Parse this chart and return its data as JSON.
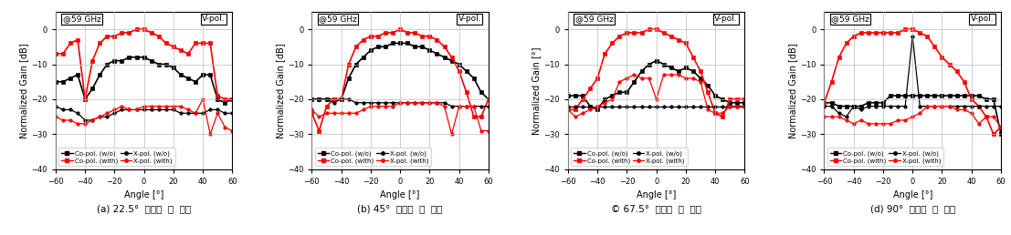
{
  "subplots": [
    {
      "ylabel": "Normalized Gain [dB]",
      "xlabel": "Angle [°]",
      "annotation_left": "@59 GHz",
      "annotation_right": "V-pol.",
      "ylim": [
        -40,
        5
      ],
      "xlim": [
        -60,
        60
      ],
      "yticks": [
        0,
        -10,
        -20,
        -30,
        -40
      ],
      "xticks": [
        -60,
        -40,
        -20,
        0,
        20,
        40,
        60
      ],
      "caption": "(a) 22.5°  안테나  비  정렬",
      "series": [
        {
          "label": "Co-pol. (w/o)",
          "color": "black",
          "marker": "s",
          "linewidth": 1.2,
          "markersize": 3.5,
          "linestyle": "-",
          "x": [
            -60,
            -55,
            -50,
            -45,
            -40,
            -35,
            -30,
            -25,
            -20,
            -15,
            -10,
            -5,
            0,
            5,
            10,
            15,
            20,
            25,
            30,
            35,
            40,
            45,
            50,
            55,
            60
          ],
          "y": [
            -15,
            -15,
            -14,
            -13,
            -20,
            -17,
            -13,
            -10,
            -9,
            -9,
            -8,
            -8,
            -8,
            -9,
            -10,
            -10,
            -11,
            -13,
            -14,
            -15,
            -13,
            -13,
            -20,
            -21,
            -20
          ]
        },
        {
          "label": "Co-pol. (with)",
          "color": "red",
          "marker": "s",
          "linewidth": 1.2,
          "markersize": 3.5,
          "linestyle": "-",
          "x": [
            -60,
            -55,
            -50,
            -45,
            -40,
            -35,
            -30,
            -25,
            -20,
            -15,
            -10,
            -5,
            0,
            5,
            10,
            15,
            20,
            25,
            30,
            35,
            40,
            45,
            50,
            55,
            60
          ],
          "y": [
            -7,
            -7,
            -4,
            -3,
            -20,
            -9,
            -4,
            -2,
            -2,
            -1,
            -1,
            0,
            0,
            -1,
            -2,
            -4,
            -5,
            -6,
            -7,
            -4,
            -4,
            -4,
            -19,
            -20,
            -20
          ]
        },
        {
          "label": "X-pol. (w/o)",
          "color": "black",
          "marker": "o",
          "linewidth": 0.9,
          "markersize": 2.5,
          "linestyle": "-",
          "x": [
            -60,
            -55,
            -50,
            -45,
            -40,
            -35,
            -30,
            -25,
            -20,
            -15,
            -10,
            -5,
            0,
            5,
            10,
            15,
            20,
            25,
            30,
            35,
            40,
            45,
            50,
            55,
            60
          ],
          "y": [
            -22,
            -23,
            -23,
            -24,
            -26,
            -26,
            -25,
            -25,
            -24,
            -23,
            -23,
            -23,
            -23,
            -23,
            -23,
            -23,
            -23,
            -24,
            -24,
            -24,
            -24,
            -23,
            -23,
            -24,
            -24
          ]
        },
        {
          "label": "X-pol. (with)",
          "color": "red",
          "marker": "o",
          "linewidth": 0.9,
          "markersize": 2.5,
          "linestyle": "-",
          "x": [
            -60,
            -55,
            -50,
            -45,
            -40,
            -35,
            -30,
            -25,
            -20,
            -15,
            -10,
            -5,
            0,
            5,
            10,
            15,
            20,
            25,
            30,
            35,
            40,
            45,
            50,
            55,
            60
          ],
          "y": [
            -25,
            -26,
            -26,
            -27,
            -27,
            -26,
            -25,
            -24,
            -23,
            -22,
            -23,
            -23,
            -22,
            -22,
            -22,
            -22,
            -22,
            -22,
            -23,
            -24,
            -20,
            -30,
            -24,
            -28,
            -29
          ]
        }
      ]
    },
    {
      "ylabel": "Normalized Gain [dB]",
      "xlabel": "Angle [°]",
      "annotation_left": "@59 GHz",
      "annotation_right": "V-pol.",
      "ylim": [
        -40,
        5
      ],
      "xlim": [
        -60,
        60
      ],
      "yticks": [
        0,
        -10,
        -20,
        -30,
        -40
      ],
      "xticks": [
        -60,
        -40,
        -20,
        0,
        20,
        40,
        60
      ],
      "caption": "(b) 45°  안테나  비  정렬",
      "series": [
        {
          "label": "Co-pol. (w/o)",
          "color": "black",
          "marker": "s",
          "linewidth": 1.2,
          "markersize": 3.5,
          "linestyle": "-",
          "x": [
            -60,
            -55,
            -50,
            -45,
            -40,
            -35,
            -30,
            -25,
            -20,
            -15,
            -10,
            -5,
            0,
            5,
            10,
            15,
            20,
            25,
            30,
            35,
            40,
            45,
            50,
            55,
            60
          ],
          "y": [
            -20,
            -20,
            -20,
            -20,
            -20,
            -14,
            -10,
            -8,
            -6,
            -5,
            -5,
            -4,
            -4,
            -4,
            -5,
            -5,
            -6,
            -7,
            -8,
            -9,
            -10,
            -12,
            -14,
            -18,
            -20
          ]
        },
        {
          "label": "Co-pol. (with)",
          "color": "red",
          "marker": "s",
          "linewidth": 1.2,
          "markersize": 3.5,
          "linestyle": "-",
          "x": [
            -60,
            -55,
            -50,
            -45,
            -40,
            -35,
            -30,
            -25,
            -20,
            -15,
            -10,
            -5,
            0,
            5,
            10,
            15,
            20,
            25,
            30,
            35,
            40,
            45,
            50,
            55,
            60
          ],
          "y": [
            -24,
            -29,
            -22,
            -20,
            -20,
            -10,
            -5,
            -3,
            -2,
            -2,
            -1,
            -1,
            0,
            -1,
            -1,
            -2,
            -2,
            -3,
            -5,
            -8,
            -12,
            -18,
            -25,
            -25,
            -20
          ]
        },
        {
          "label": "X-pol. (w/o)",
          "color": "black",
          "marker": "o",
          "linewidth": 0.9,
          "markersize": 2.5,
          "linestyle": "-",
          "x": [
            -60,
            -55,
            -50,
            -45,
            -40,
            -35,
            -30,
            -25,
            -20,
            -15,
            -10,
            -5,
            0,
            5,
            10,
            15,
            20,
            25,
            30,
            35,
            40,
            45,
            50,
            55,
            60
          ],
          "y": [
            -20,
            -20,
            -20,
            -21,
            -20,
            -20,
            -21,
            -21,
            -21,
            -21,
            -21,
            -21,
            -21,
            -21,
            -21,
            -21,
            -21,
            -21,
            -21,
            -22,
            -22,
            -22,
            -22,
            -22,
            -22
          ]
        },
        {
          "label": "X-pol. (with)",
          "color": "red",
          "marker": "o",
          "linewidth": 0.9,
          "markersize": 2.5,
          "linestyle": "-",
          "x": [
            -60,
            -55,
            -50,
            -45,
            -40,
            -35,
            -30,
            -25,
            -20,
            -15,
            -10,
            -5,
            0,
            5,
            10,
            15,
            20,
            25,
            30,
            35,
            40,
            45,
            50,
            55,
            60
          ],
          "y": [
            -23,
            -25,
            -24,
            -24,
            -24,
            -24,
            -24,
            -23,
            -22,
            -22,
            -22,
            -22,
            -21,
            -21,
            -21,
            -21,
            -21,
            -21,
            -22,
            -30,
            -22,
            -22,
            -22,
            -29,
            -29
          ]
        }
      ]
    },
    {
      "ylabel": "Normalized Gain [°]",
      "xlabel": "Angle [°]",
      "annotation_left": "@59 GHz",
      "annotation_right": "V-pol.",
      "ylim": [
        -40,
        5
      ],
      "xlim": [
        -60,
        60
      ],
      "yticks": [
        0,
        -10,
        -20,
        -30,
        -40
      ],
      "xticks": [
        -60,
        -40,
        -20,
        0,
        20,
        40,
        60
      ],
      "caption": "© 67.5°  안테나  비  정렬",
      "series": [
        {
          "label": "Co-pol. (w/o)",
          "color": "black",
          "marker": "s",
          "linewidth": 1.2,
          "markersize": 3.5,
          "linestyle": "-",
          "x": [
            -60,
            -55,
            -50,
            -45,
            -40,
            -35,
            -30,
            -25,
            -20,
            -15,
            -10,
            -5,
            0,
            5,
            10,
            15,
            20,
            25,
            30,
            35,
            40,
            45,
            50,
            55,
            60
          ],
          "y": [
            -19,
            -19,
            -19,
            -22,
            -23,
            -20,
            -19,
            -18,
            -18,
            -15,
            -12,
            -10,
            -9,
            -10,
            -11,
            -12,
            -11,
            -12,
            -14,
            -16,
            -19,
            -20,
            -21,
            -21,
            -21
          ]
        },
        {
          "label": "Co-pol. (with)",
          "color": "red",
          "marker": "s",
          "linewidth": 1.2,
          "markersize": 3.5,
          "linestyle": "-",
          "x": [
            -60,
            -55,
            -50,
            -45,
            -40,
            -35,
            -30,
            -25,
            -20,
            -15,
            -10,
            -5,
            0,
            5,
            10,
            15,
            20,
            25,
            30,
            35,
            40,
            45,
            50,
            55,
            60
          ],
          "y": [
            -23,
            -23,
            -20,
            -17,
            -14,
            -7,
            -4,
            -2,
            -1,
            -1,
            -1,
            0,
            0,
            -1,
            -2,
            -3,
            -4,
            -8,
            -12,
            -18,
            -24,
            -25,
            -20,
            -20,
            -20
          ]
        },
        {
          "label": "X-pol. (w/o)",
          "color": "black",
          "marker": "o",
          "linewidth": 0.9,
          "markersize": 2.5,
          "linestyle": "-",
          "x": [
            -60,
            -55,
            -50,
            -45,
            -40,
            -35,
            -30,
            -25,
            -20,
            -15,
            -10,
            -5,
            0,
            5,
            10,
            15,
            20,
            25,
            30,
            35,
            40,
            45,
            50,
            55,
            60
          ],
          "y": [
            -22,
            -22,
            -22,
            -22,
            -22,
            -22,
            -22,
            -22,
            -22,
            -22,
            -22,
            -22,
            -22,
            -22,
            -22,
            -22,
            -22,
            -22,
            -22,
            -22,
            -22,
            -22,
            -22,
            -22,
            -22
          ]
        },
        {
          "label": "X-pol. (with)",
          "color": "red",
          "marker": "o",
          "linewidth": 0.9,
          "markersize": 2.5,
          "linestyle": "-",
          "x": [
            -60,
            -55,
            -50,
            -45,
            -40,
            -35,
            -30,
            -25,
            -20,
            -15,
            -10,
            -5,
            0,
            5,
            10,
            15,
            20,
            25,
            30,
            35,
            40,
            45,
            50,
            55,
            60
          ],
          "y": [
            -23,
            -25,
            -24,
            -23,
            -22,
            -21,
            -20,
            -15,
            -14,
            -13,
            -14,
            -14,
            -20,
            -13,
            -13,
            -13,
            -14,
            -14,
            -15,
            -23,
            -24,
            -24,
            -22,
            -22,
            -22
          ]
        }
      ]
    },
    {
      "ylabel": "Normalized Gain [dB]",
      "xlabel": "Angle [°]",
      "annotation_left": "@59 GHz",
      "annotation_right": "V-pol.",
      "ylim": [
        -40,
        5
      ],
      "xlim": [
        -60,
        60
      ],
      "yticks": [
        0,
        -10,
        -20,
        -30,
        -40
      ],
      "xticks": [
        -60,
        -40,
        -20,
        0,
        20,
        40,
        60
      ],
      "caption": "(d) 90°  안테나  비  정렬",
      "series": [
        {
          "label": "Co-pol. (w/o)",
          "color": "black",
          "marker": "s",
          "linewidth": 1.2,
          "markersize": 3.5,
          "linestyle": "-",
          "x": [
            -60,
            -55,
            -50,
            -45,
            -40,
            -35,
            -30,
            -25,
            -20,
            -15,
            -10,
            -5,
            0,
            5,
            10,
            15,
            20,
            25,
            30,
            35,
            40,
            45,
            50,
            55,
            60
          ],
          "y": [
            -21,
            -21,
            -22,
            -22,
            -22,
            -22,
            -21,
            -21,
            -21,
            -19,
            -19,
            -19,
            -19,
            -19,
            -19,
            -19,
            -19,
            -19,
            -19,
            -19,
            -19,
            -19,
            -20,
            -20,
            -30
          ]
        },
        {
          "label": "Co-pol. (with)",
          "color": "red",
          "marker": "s",
          "linewidth": 1.2,
          "markersize": 3.5,
          "linestyle": "-",
          "x": [
            -60,
            -55,
            -50,
            -45,
            -40,
            -35,
            -30,
            -25,
            -20,
            -15,
            -10,
            -5,
            0,
            5,
            10,
            15,
            20,
            25,
            30,
            35,
            40,
            45,
            50,
            55,
            60
          ],
          "y": [
            -21,
            -15,
            -8,
            -4,
            -2,
            -1,
            -1,
            -1,
            -1,
            -1,
            -1,
            0,
            0,
            -1,
            -2,
            -5,
            -8,
            -10,
            -12,
            -15,
            -20,
            -22,
            -25,
            -30,
            -28
          ]
        },
        {
          "label": "X-pol. (w/o)",
          "color": "black",
          "marker": "o",
          "linewidth": 0.9,
          "markersize": 2.5,
          "linestyle": "-",
          "x": [
            -60,
            -55,
            -50,
            -45,
            -40,
            -35,
            -30,
            -25,
            -20,
            -15,
            -10,
            -5,
            0,
            5,
            10,
            15,
            20,
            25,
            30,
            35,
            40,
            45,
            50,
            55,
            60
          ],
          "y": [
            -22,
            -22,
            -24,
            -25,
            -22,
            -23,
            -22,
            -22,
            -22,
            -22,
            -22,
            -22,
            -2,
            -22,
            -22,
            -22,
            -22,
            -22,
            -22,
            -22,
            -22,
            -22,
            -22,
            -22,
            -22
          ]
        },
        {
          "label": "X-pol. (with)",
          "color": "red",
          "marker": "o",
          "linewidth": 0.9,
          "markersize": 2.5,
          "linestyle": "-",
          "x": [
            -60,
            -55,
            -50,
            -45,
            -40,
            -35,
            -30,
            -25,
            -20,
            -15,
            -10,
            -5,
            0,
            5,
            10,
            15,
            20,
            25,
            30,
            35,
            40,
            45,
            50,
            55,
            60
          ],
          "y": [
            -25,
            -25,
            -25,
            -26,
            -27,
            -26,
            -27,
            -27,
            -27,
            -27,
            -26,
            -26,
            -25,
            -24,
            -22,
            -22,
            -22,
            -22,
            -23,
            -23,
            -24,
            -27,
            -25,
            -25,
            -28
          ]
        }
      ]
    }
  ],
  "background_color": "#ffffff",
  "grid_color": "#bbbbbb"
}
